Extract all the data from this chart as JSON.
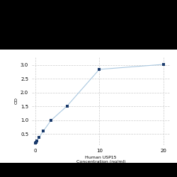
{
  "x": [
    0,
    0.156,
    0.313,
    0.625,
    1.25,
    2.5,
    5,
    10,
    20
  ],
  "y": [
    0.168,
    0.19,
    0.25,
    0.38,
    0.6,
    1.0,
    1.52,
    2.84,
    3.02
  ],
  "line_color": "#aac8e0",
  "marker_color": "#1a3a6b",
  "marker_size": 3,
  "marker_style": "s",
  "xlabel_line1": "Human USP15",
  "xlabel_line2": "Concentration (ng/ml)",
  "ylabel": "OD",
  "yticks": [
    0.5,
    1.0,
    1.5,
    2.0,
    2.5,
    3.0
  ],
  "ylim": [
    0.1,
    3.3
  ],
  "xlim": [
    -0.5,
    21
  ],
  "xticks": [
    0,
    10,
    20
  ],
  "xticklabels": [
    "0",
    "10",
    "20"
  ],
  "grid_color": "#cccccc",
  "bg_color": "#ffffff",
  "fig_bg": "#ffffff",
  "top_black_bg": "#000000",
  "linewidth": 0.8,
  "tick_fontsize": 5,
  "label_fontsize": 4.5
}
